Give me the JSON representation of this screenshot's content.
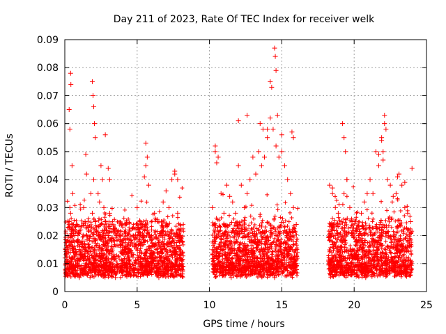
{
  "chart_data": {
    "type": "scatter",
    "title": "Day 211 of 2023, Rate Of TEC Index for receiver welk",
    "xlabel": "GPS time / hours",
    "ylabel": "ROTI / TECUs",
    "xlim": [
      0,
      25
    ],
    "ylim": [
      0,
      0.09
    ],
    "x_ticks": [
      0,
      5,
      10,
      15,
      20,
      25
    ],
    "x_tick_labels": [
      "0",
      "5",
      "10",
      "15",
      "20",
      "25"
    ],
    "y_ticks": [
      0,
      0.01,
      0.02,
      0.03,
      0.04,
      0.05,
      0.06,
      0.07,
      0.08,
      0.09
    ],
    "y_tick_labels": [
      "0",
      "0.01",
      "0.02",
      "0.03",
      "0.04",
      "0.05",
      "0.06",
      "0.07",
      "0.08",
      "0.09"
    ],
    "grid": true,
    "marker": "plus",
    "color": "#ff0000",
    "series": [
      {
        "x": [
          0.02,
          0.08,
          0.15,
          0.22,
          0.3,
          0.35,
          0.4,
          0.45,
          0.5,
          0.55,
          0.6,
          0.7,
          0.8,
          0.9,
          1.0,
          1.1,
          1.2,
          1.3,
          1.4,
          1.5,
          1.6,
          1.7,
          1.8,
          1.9,
          2.0,
          2.1,
          2.2,
          2.3,
          2.4,
          2.5,
          2.6,
          2.7,
          2.8,
          2.9,
          3.0,
          3.1,
          3.2,
          3.4,
          3.6,
          3.8,
          4.0,
          4.2,
          4.4,
          4.6,
          4.8,
          5.0,
          5.2,
          5.4,
          5.6,
          5.8,
          6.0,
          6.2,
          6.4,
          6.6,
          6.8,
          7.0,
          7.2,
          7.4,
          7.6,
          7.8,
          8.0,
          8.1,
          0.3,
          0.35,
          0.4,
          0.42,
          0.5,
          0.55,
          1.45,
          1.5,
          1.9,
          1.95,
          2.0,
          2.05,
          2.1,
          2.8,
          3.0,
          3.1,
          5.6,
          5.7,
          5.5,
          7.6,
          7.8,
          10.2,
          10.4,
          10.6,
          10.8,
          11.0,
          11.2,
          11.4,
          11.6,
          11.8,
          12.0,
          12.2,
          12.4,
          12.6,
          12.8,
          13.0,
          13.2,
          13.4,
          13.6,
          13.8,
          14.0,
          14.2,
          14.4,
          14.6,
          14.8,
          15.0,
          15.2,
          15.4,
          15.6,
          15.8,
          16.0,
          10.4,
          10.5,
          12.0,
          13.5,
          13.7,
          14.0,
          14.3,
          14.5,
          14.55,
          14.6,
          14.7,
          14.2,
          15.0,
          15.7,
          15.8,
          12.6,
          18.3,
          18.5,
          18.7,
          18.9,
          19.1,
          19.3,
          19.5,
          19.7,
          19.9,
          20.1,
          20.3,
          20.5,
          20.7,
          20.9,
          21.1,
          21.3,
          21.5,
          21.7,
          21.9,
          22.1,
          22.3,
          22.5,
          22.7,
          22.9,
          23.1,
          23.3,
          23.5,
          23.7,
          23.9,
          18.5,
          19.2,
          19.3,
          19.4,
          19.5,
          21.9,
          22.0,
          22.1,
          22.2,
          22.0,
          21.7,
          23.0,
          23.5,
          24.0,
          0.1,
          0.5,
          1.0,
          1.8,
          2.5,
          3.5,
          4.5,
          5.5,
          6.5,
          7.5,
          10.5,
          11.5,
          12.5,
          13.5,
          14.5,
          15.5,
          18.8,
          19.8,
          20.8,
          21.8,
          22.8,
          23.8
        ],
        "y": [
          0.012,
          0.01,
          0.015,
          0.02,
          0.025,
          0.03,
          0.028,
          0.022,
          0.018,
          0.016,
          0.014,
          0.02,
          0.024,
          0.018,
          0.015,
          0.022,
          0.018,
          0.03,
          0.025,
          0.02,
          0.017,
          0.016,
          0.035,
          0.028,
          0.04,
          0.025,
          0.022,
          0.035,
          0.032,
          0.045,
          0.04,
          0.03,
          0.025,
          0.022,
          0.02,
          0.028,
          0.018,
          0.016,
          0.02,
          0.018,
          0.017,
          0.022,
          0.015,
          0.013,
          0.016,
          0.03,
          0.025,
          0.02,
          0.045,
          0.038,
          0.022,
          0.028,
          0.025,
          0.02,
          0.032,
          0.036,
          0.03,
          0.04,
          0.042,
          0.028,
          0.02,
          0.018,
          0.065,
          0.058,
          0.078,
          0.074,
          0.045,
          0.035,
          0.049,
          0.042,
          0.075,
          0.07,
          0.066,
          0.06,
          0.055,
          0.056,
          0.044,
          0.04,
          0.053,
          0.048,
          0.041,
          0.043,
          0.04,
          0.03,
          0.052,
          0.048,
          0.035,
          0.028,
          0.038,
          0.034,
          0.032,
          0.028,
          0.045,
          0.038,
          0.03,
          0.035,
          0.04,
          0.048,
          0.042,
          0.05,
          0.045,
          0.048,
          0.055,
          0.062,
          0.058,
          0.052,
          0.048,
          0.05,
          0.045,
          0.04,
          0.035,
          0.03,
          0.024,
          0.05,
          0.046,
          0.061,
          0.06,
          0.058,
          0.058,
          0.073,
          0.087,
          0.084,
          0.079,
          0.063,
          0.075,
          0.056,
          0.057,
          0.055,
          0.063,
          0.038,
          0.035,
          0.03,
          0.028,
          0.025,
          0.035,
          0.04,
          0.03,
          0.025,
          0.022,
          0.02,
          0.028,
          0.032,
          0.035,
          0.04,
          0.035,
          0.05,
          0.045,
          0.055,
          0.06,
          0.04,
          0.038,
          0.034,
          0.035,
          0.042,
          0.038,
          0.03,
          0.028,
          0.025,
          0.037,
          0.06,
          0.055,
          0.05,
          0.04,
          0.054,
          0.05,
          0.063,
          0.058,
          0.047,
          0.049,
          0.041,
          0.039,
          0.044,
          0.006,
          0.007,
          0.005,
          0.008,
          0.006,
          0.005,
          0.006,
          0.007,
          0.005,
          0.006,
          0.007,
          0.005,
          0.006,
          0.007,
          0.005,
          0.006,
          0.007,
          0.006,
          0.005,
          0.006,
          0.007,
          0.006
        ]
      }
    ]
  }
}
